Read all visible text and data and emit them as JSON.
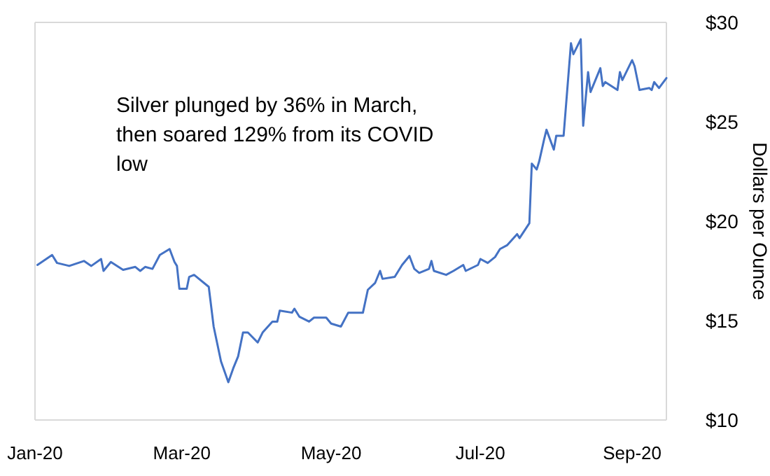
{
  "chart_data": {
    "type": "line",
    "ylabel": "Dollars per Ounce",
    "annotations": [
      "Silver plunged by 36% in March, then soared 129% from its COVID low"
    ],
    "xlim": [
      "2020-01-01",
      "2020-09-15"
    ],
    "xticks": [
      {
        "value": "2020-01-01",
        "label": "Jan-20"
      },
      {
        "value": "2020-03-01",
        "label": "Mar-20"
      },
      {
        "value": "2020-05-01",
        "label": "May-20"
      },
      {
        "value": "2020-07-01",
        "label": "Jul-20"
      },
      {
        "value": "2020-09-01",
        "label": "Sep-20"
      }
    ],
    "ylim": [
      10,
      30
    ],
    "yticks": [
      {
        "value": 10,
        "label": "$10"
      },
      {
        "value": 15,
        "label": "$15"
      },
      {
        "value": 20,
        "label": "$20"
      },
      {
        "value": 25,
        "label": "$25"
      },
      {
        "value": 30,
        "label": "$30"
      }
    ],
    "grid": false,
    "marker": "none",
    "line_style": "solid",
    "x": [
      "2020-01-02",
      "2020-01-08",
      "2020-01-10",
      "2020-01-15",
      "2020-01-21",
      "2020-01-24",
      "2020-01-28",
      "2020-01-29",
      "2020-02-01",
      "2020-02-06",
      "2020-02-11",
      "2020-02-13",
      "2020-02-15",
      "2020-02-18",
      "2020-02-21",
      "2020-02-25",
      "2020-02-27",
      "2020-02-28",
      "2020-02-29",
      "2020-03-03",
      "2020-03-04",
      "2020-03-06",
      "2020-03-12",
      "2020-03-14",
      "2020-03-17",
      "2020-03-20",
      "2020-03-22",
      "2020-03-24",
      "2020-03-26",
      "2020-03-28",
      "2020-04-01",
      "2020-04-03",
      "2020-04-07",
      "2020-04-09",
      "2020-04-10",
      "2020-04-15",
      "2020-04-16",
      "2020-04-18",
      "2020-04-22",
      "2020-04-24",
      "2020-04-29",
      "2020-05-01",
      "2020-05-05",
      "2020-05-08",
      "2020-05-14",
      "2020-05-16",
      "2020-05-19",
      "2020-05-21",
      "2020-05-22",
      "2020-05-27",
      "2020-05-30",
      "2020-06-02",
      "2020-06-04",
      "2020-06-06",
      "2020-06-10",
      "2020-06-11",
      "2020-06-12",
      "2020-06-17",
      "2020-06-20",
      "2020-06-24",
      "2020-06-25",
      "2020-06-30",
      "2020-07-01",
      "2020-07-04",
      "2020-07-07",
      "2020-07-09",
      "2020-07-12",
      "2020-07-16",
      "2020-07-17",
      "2020-07-21",
      "2020-07-22",
      "2020-07-24",
      "2020-07-25",
      "2020-07-27",
      "2020-07-28",
      "2020-07-31",
      "2020-08-01",
      "2020-08-04",
      "2020-08-07",
      "2020-08-08",
      "2020-08-11",
      "2020-08-12",
      "2020-08-14",
      "2020-08-15",
      "2020-08-19",
      "2020-08-20",
      "2020-08-21",
      "2020-08-26",
      "2020-08-27",
      "2020-08-28",
      "2020-09-01",
      "2020-09-02",
      "2020-09-04",
      "2020-09-08",
      "2020-09-09",
      "2020-09-10",
      "2020-09-12",
      "2020-09-15"
    ],
    "series": [
      {
        "color": "#4472c4",
        "values": [
          17.8,
          18.3,
          17.9,
          17.75,
          18.0,
          17.75,
          18.1,
          17.5,
          17.95,
          17.55,
          17.7,
          17.5,
          17.7,
          17.6,
          18.3,
          18.6,
          17.95,
          17.75,
          16.6,
          16.6,
          17.2,
          17.3,
          16.7,
          14.7,
          12.95,
          11.9,
          12.6,
          13.2,
          14.4,
          14.4,
          13.9,
          14.4,
          14.95,
          14.95,
          15.5,
          15.4,
          15.6,
          15.2,
          14.95,
          15.15,
          15.15,
          14.85,
          14.7,
          15.4,
          15.4,
          16.55,
          16.9,
          17.5,
          17.1,
          17.2,
          17.8,
          18.25,
          17.6,
          17.4,
          17.6,
          18.0,
          17.5,
          17.3,
          17.5,
          17.8,
          17.5,
          17.8,
          18.1,
          17.9,
          18.2,
          18.6,
          18.8,
          19.35,
          19.15,
          19.9,
          22.9,
          22.6,
          23.0,
          24.1,
          24.6,
          23.6,
          24.3,
          24.3,
          28.95,
          28.4,
          29.15,
          24.8,
          27.5,
          26.5,
          27.7,
          26.8,
          27.0,
          26.6,
          27.5,
          27.1,
          28.1,
          27.8,
          26.6,
          26.7,
          26.6,
          27.0,
          26.7,
          27.2
        ]
      }
    ]
  }
}
